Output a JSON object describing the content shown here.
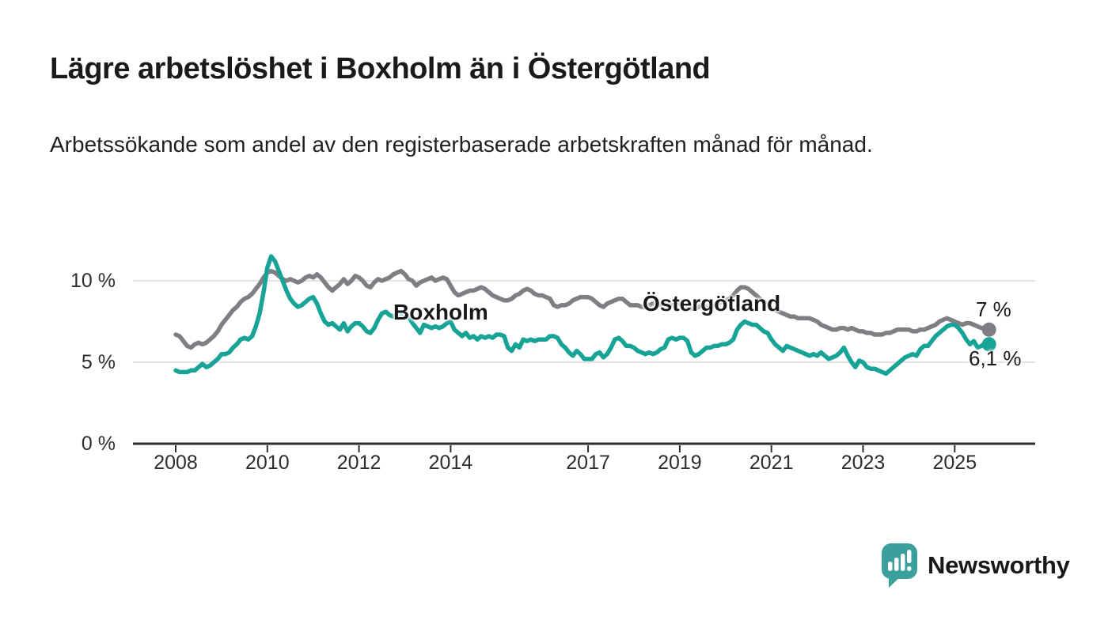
{
  "chart_data": {
    "type": "line",
    "title": "Lägre arbetslöshet i Boxholm än i Östergötland",
    "subtitle": "Arbetssökande som andel av den registerbaserade arbetskraften månad för månad.",
    "unit": "%",
    "frequency": "monthly",
    "x_start_year": 2008,
    "x_end_year_frac": 2025.75,
    "ylim": [
      0,
      12
    ],
    "grid": true,
    "legend_position": "inline-labels",
    "y_ticks": [
      {
        "value": 10,
        "label": "10 %"
      },
      {
        "value": 5,
        "label": "5 %"
      },
      {
        "value": 0,
        "label": "0 %"
      }
    ],
    "x_ticks": [
      {
        "value": 2008,
        "label": "2008"
      },
      {
        "value": 2010,
        "label": "2010"
      },
      {
        "value": 2012,
        "label": "2012"
      },
      {
        "value": 2014,
        "label": "2014"
      },
      {
        "value": 2017,
        "label": "2017"
      },
      {
        "value": 2019,
        "label": "2019"
      },
      {
        "value": 2021,
        "label": "2021"
      },
      {
        "value": 2023,
        "label": "2023"
      },
      {
        "value": 2025,
        "label": "2025"
      }
    ],
    "series": [
      {
        "name": "Östergötland",
        "color": "#7e7e83",
        "end_label": "7 %",
        "last_value": 7.0,
        "values": [
          6.7,
          6.6,
          6.3,
          6.0,
          5.9,
          6.1,
          6.2,
          6.1,
          6.2,
          6.4,
          6.6,
          6.9,
          7.3,
          7.6,
          7.9,
          8.2,
          8.4,
          8.7,
          8.9,
          9.0,
          9.2,
          9.5,
          9.8,
          10.2,
          10.5,
          10.6,
          10.5,
          10.3,
          10.1,
          10.0,
          10.1,
          10.0,
          9.9,
          10.0,
          10.2,
          10.3,
          10.2,
          10.4,
          10.2,
          9.9,
          9.6,
          9.4,
          9.6,
          9.8,
          10.1,
          9.8,
          10.0,
          10.3,
          10.2,
          10.0,
          9.7,
          9.6,
          9.9,
          10.1,
          10.0,
          10.1,
          10.2,
          10.4,
          10.5,
          10.6,
          10.4,
          10.1,
          10.0,
          9.7,
          9.9,
          10.0,
          10.1,
          10.2,
          10.0,
          10.1,
          10.2,
          10.1,
          9.7,
          9.3,
          9.1,
          9.2,
          9.3,
          9.4,
          9.4,
          9.5,
          9.6,
          9.5,
          9.3,
          9.1,
          9.0,
          8.9,
          8.8,
          8.8,
          8.9,
          9.1,
          9.2,
          9.4,
          9.5,
          9.4,
          9.2,
          9.1,
          9.1,
          9.0,
          8.9,
          8.5,
          8.4,
          8.5,
          8.5,
          8.6,
          8.8,
          8.9,
          9.0,
          9.0,
          9.0,
          8.9,
          8.7,
          8.5,
          8.4,
          8.6,
          8.7,
          8.8,
          8.9,
          8.9,
          8.7,
          8.5,
          8.5,
          8.5,
          8.4,
          8.4,
          8.5,
          8.6,
          8.6,
          8.5,
          8.4,
          8.5,
          8.5,
          8.6,
          8.6,
          8.5,
          8.4,
          8.3,
          8.3,
          8.4,
          8.5,
          8.4,
          8.4,
          8.5,
          8.6,
          8.7,
          8.8,
          8.9,
          9.1,
          9.4,
          9.6,
          9.6,
          9.5,
          9.3,
          9.1,
          8.9,
          8.7,
          8.5,
          8.3,
          8.2,
          8.1,
          8.0,
          7.9,
          7.8,
          7.8,
          7.7,
          7.7,
          7.7,
          7.7,
          7.6,
          7.5,
          7.3,
          7.2,
          7.1,
          7.0,
          7.0,
          7.1,
          7.1,
          7.0,
          7.1,
          7.0,
          6.9,
          6.9,
          6.8,
          6.8,
          6.7,
          6.7,
          6.7,
          6.8,
          6.8,
          6.9,
          7.0,
          7.0,
          7.0,
          7.0,
          6.9,
          6.9,
          7.0,
          7.0,
          7.1,
          7.2,
          7.3,
          7.5,
          7.6,
          7.7,
          7.6,
          7.5,
          7.4,
          7.3,
          7.4,
          7.4,
          7.3,
          7.2,
          7.1,
          7.1,
          7.0
        ]
      },
      {
        "name": "Boxholm",
        "color": "#17a496",
        "end_label": "6,1 %",
        "last_value": 6.1,
        "values": [
          4.5,
          4.4,
          4.4,
          4.4,
          4.5,
          4.5,
          4.7,
          4.9,
          4.7,
          4.8,
          5.0,
          5.2,
          5.5,
          5.5,
          5.6,
          5.9,
          6.1,
          6.4,
          6.5,
          6.4,
          6.6,
          7.2,
          8.0,
          9.3,
          10.8,
          11.5,
          11.2,
          10.6,
          10.0,
          9.4,
          8.9,
          8.6,
          8.4,
          8.5,
          8.7,
          8.9,
          9.0,
          8.6,
          8.0,
          7.5,
          7.3,
          7.4,
          7.2,
          7.0,
          7.4,
          6.9,
          7.2,
          7.4,
          7.4,
          7.2,
          6.9,
          6.8,
          7.1,
          7.6,
          8.0,
          8.1,
          7.9,
          7.8,
          7.9,
          8.0,
          7.9,
          7.8,
          7.4,
          7.1,
          6.8,
          7.3,
          7.2,
          7.1,
          7.2,
          7.1,
          7.2,
          7.4,
          7.5,
          7.0,
          6.8,
          6.6,
          6.8,
          6.5,
          6.6,
          6.4,
          6.6,
          6.5,
          6.6,
          6.5,
          6.7,
          6.7,
          6.6,
          5.9,
          5.7,
          6.1,
          5.9,
          6.4,
          6.3,
          6.4,
          6.3,
          6.4,
          6.4,
          6.4,
          6.6,
          6.6,
          6.5,
          6.1,
          5.9,
          5.6,
          5.4,
          5.7,
          5.5,
          5.2,
          5.2,
          5.2,
          5.5,
          5.6,
          5.3,
          5.5,
          5.9,
          6.4,
          6.5,
          6.3,
          6.0,
          6.0,
          5.9,
          5.7,
          5.6,
          5.5,
          5.6,
          5.5,
          5.6,
          5.8,
          5.9,
          6.4,
          6.5,
          6.4,
          6.5,
          6.5,
          6.3,
          5.6,
          5.4,
          5.5,
          5.7,
          5.9,
          5.9,
          6.0,
          6.0,
          6.1,
          6.1,
          6.2,
          6.4,
          7.0,
          7.3,
          7.5,
          7.4,
          7.3,
          7.3,
          7.1,
          6.9,
          6.8,
          6.4,
          6.1,
          5.9,
          5.7,
          6.0,
          5.9,
          5.8,
          5.7,
          5.6,
          5.5,
          5.4,
          5.5,
          5.4,
          5.6,
          5.4,
          5.2,
          5.3,
          5.4,
          5.6,
          5.9,
          5.4,
          5.0,
          4.7,
          5.1,
          5.0,
          4.7,
          4.6,
          4.6,
          4.5,
          4.4,
          4.3,
          4.5,
          4.7,
          4.9,
          5.1,
          5.3,
          5.4,
          5.5,
          5.4,
          5.8,
          6.0,
          6.0,
          6.3,
          6.6,
          6.8,
          7.0,
          7.2,
          7.3,
          7.3,
          7.1,
          6.8,
          6.4,
          6.1,
          6.3,
          5.9,
          6.0,
          6.2,
          6.1
        ]
      }
    ]
  },
  "colors": {
    "boxholm_line": "#17a496",
    "ostergotland_line": "#7e7e83",
    "gridline": "#d9d9d9",
    "axis": "#2e2e2e",
    "title_text": "#1a1a1a",
    "logo_teal": "#3ba09c"
  },
  "footer": {
    "brand_name": "Newsworthy"
  }
}
